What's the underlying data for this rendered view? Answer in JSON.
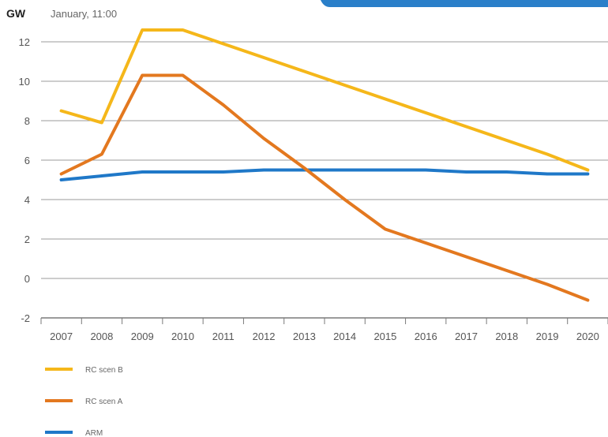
{
  "chart_data": {
    "type": "line",
    "unit_label": "GW",
    "subtitle": "January, 11:00",
    "x": [
      "2007",
      "2008",
      "2009",
      "2010",
      "2011",
      "2012",
      "2013",
      "2014",
      "2015",
      "2016",
      "2017",
      "2018",
      "2019",
      "2020"
    ],
    "ylim": [
      -2,
      12
    ],
    "yticks": [
      "12",
      "10",
      "8",
      "6",
      "4",
      "2",
      "0",
      "-2"
    ],
    "grid": "horizontal",
    "legend_position": "bottom-left",
    "series": [
      {
        "name": "RC scen B",
        "color": "#f5b71a",
        "values": [
          8.5,
          7.9,
          12.6,
          12.6,
          11.9,
          11.2,
          10.5,
          9.8,
          9.1,
          8.4,
          7.7,
          7.0,
          6.3,
          5.5
        ]
      },
      {
        "name": "RC scen A",
        "color": "#e3781f",
        "values": [
          5.3,
          6.3,
          10.3,
          10.3,
          8.8,
          7.1,
          5.6,
          4.0,
          2.5,
          1.8,
          1.1,
          0.4,
          -0.3,
          -1.1
        ]
      },
      {
        "name": "ARM",
        "color": "#1f78c8",
        "values": [
          5.0,
          5.2,
          5.4,
          5.4,
          5.4,
          5.5,
          5.5,
          5.5,
          5.5,
          5.5,
          5.4,
          5.4,
          5.3,
          5.3
        ]
      }
    ],
    "banner_color": "#2a7fc9"
  }
}
